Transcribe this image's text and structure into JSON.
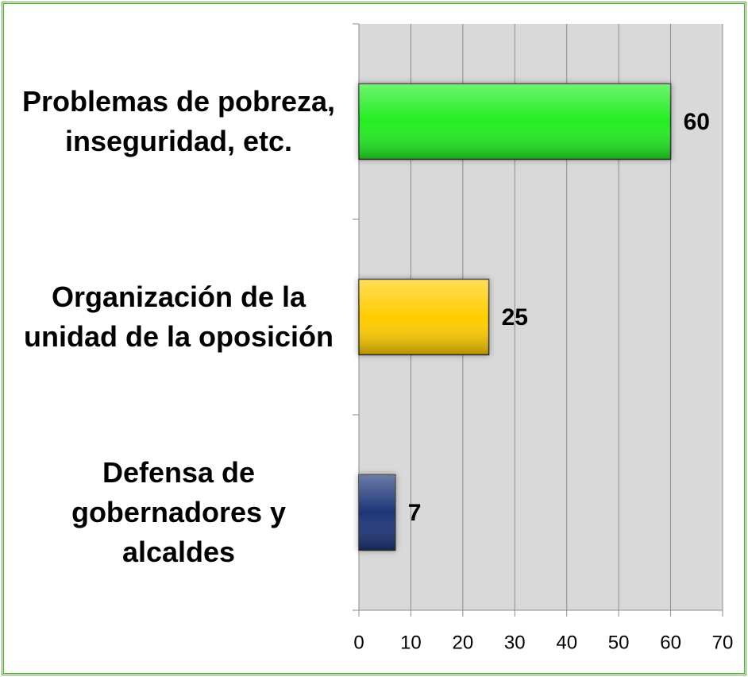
{
  "chart_data": {
    "type": "bar",
    "orientation": "horizontal",
    "categories": [
      "Problemas de pobreza, inseguridad, etc.",
      "Organización de la unidad de la oposición",
      "Defensa de gobernadores y alcaldes"
    ],
    "values": [
      60,
      25,
      7
    ],
    "colors": [
      "#22ee22",
      "#ffcc00",
      "#1a3478"
    ],
    "xlim": [
      0,
      70
    ],
    "xticks": [
      0,
      10,
      20,
      30,
      40,
      50,
      60,
      70
    ],
    "grid": true
  }
}
